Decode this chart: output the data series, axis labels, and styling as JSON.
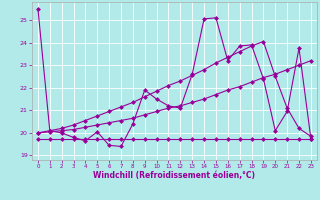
{
  "background_color": "#b2eaea",
  "grid_color": "#ffffff",
  "line_color": "#990099",
  "xlabel": "Windchill (Refroidissement éolien,°C)",
  "xlim": [
    -0.5,
    23.5
  ],
  "ylim": [
    18.8,
    25.8
  ],
  "xticks": [
    0,
    1,
    2,
    3,
    4,
    5,
    6,
    7,
    8,
    9,
    10,
    11,
    12,
    13,
    14,
    15,
    16,
    17,
    18,
    19,
    20,
    21,
    22,
    23
  ],
  "yticks": [
    19,
    20,
    21,
    22,
    23,
    24,
    25
  ],
  "series1_x": [
    0,
    1,
    2,
    3,
    4,
    5,
    6,
    7,
    8,
    9,
    10,
    11,
    12,
    13,
    14,
    15,
    16,
    17,
    18,
    19,
    20,
    21,
    22,
    23
  ],
  "series1_y": [
    25.5,
    20.1,
    20.0,
    19.8,
    19.65,
    20.05,
    19.45,
    19.4,
    20.4,
    21.9,
    21.5,
    21.2,
    21.1,
    22.6,
    25.05,
    25.1,
    23.2,
    23.85,
    23.9,
    22.4,
    20.1,
    20.95,
    23.75,
    19.75
  ],
  "series2_x": [
    0,
    1,
    2,
    3,
    4,
    5,
    6,
    7,
    8,
    9,
    10,
    11,
    12,
    13,
    14,
    15,
    16,
    17,
    18,
    19,
    20,
    21,
    22,
    23
  ],
  "series2_y": [
    19.75,
    19.75,
    19.75,
    19.75,
    19.75,
    19.75,
    19.75,
    19.75,
    19.75,
    19.75,
    19.75,
    19.75,
    19.75,
    19.75,
    19.75,
    19.75,
    19.75,
    19.75,
    19.75,
    19.75,
    19.75,
    19.75,
    19.75,
    19.75
  ],
  "series3_x": [
    0,
    1,
    2,
    3,
    4,
    5,
    6,
    7,
    8,
    9,
    10,
    11,
    12,
    13,
    14,
    15,
    16,
    17,
    18,
    19,
    20,
    21,
    22,
    23
  ],
  "series3_y": [
    20.0,
    20.05,
    20.1,
    20.15,
    20.25,
    20.35,
    20.45,
    20.55,
    20.65,
    20.8,
    20.95,
    21.1,
    21.2,
    21.35,
    21.5,
    21.7,
    21.9,
    22.05,
    22.25,
    22.45,
    22.6,
    22.8,
    23.0,
    23.2
  ],
  "series4_x": [
    0,
    1,
    2,
    3,
    4,
    5,
    6,
    7,
    8,
    9,
    10,
    11,
    12,
    13,
    14,
    15,
    16,
    17,
    18,
    19,
    20,
    21,
    22,
    23
  ],
  "series4_y": [
    20.0,
    20.1,
    20.2,
    20.35,
    20.55,
    20.75,
    20.95,
    21.15,
    21.35,
    21.6,
    21.85,
    22.1,
    22.3,
    22.55,
    22.8,
    23.1,
    23.35,
    23.6,
    23.85,
    24.05,
    22.5,
    21.1,
    20.2,
    19.85
  ]
}
